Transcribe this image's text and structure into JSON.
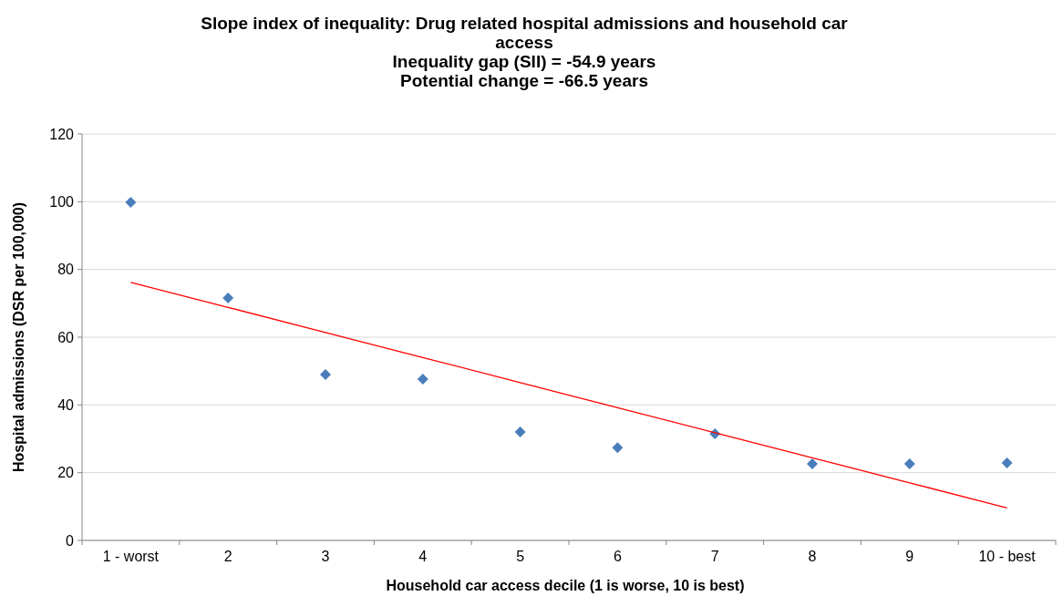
{
  "chart_data": {
    "type": "scatter",
    "title": "Slope index of inequality: Drug related hospital admissions and household car access",
    "subtitle": "Inequality gap (SII) = -54.9 years\nPotential change = -66.5 years",
    "xlabel": "Household car access decile (1 is worse, 10 is best)",
    "ylabel": "Hospital admissions (DSR per 100,000)",
    "categories": [
      "1 - worst",
      "2",
      "3",
      "4",
      "5",
      "6",
      "7",
      "8",
      "9",
      "10 - best"
    ],
    "series": [
      {
        "color": "#4a7ebb",
        "marker": "diamond",
        "values": [
          99.8,
          71.6,
          49.0,
          47.6,
          32.0,
          27.4,
          31.5,
          22.6,
          22.6,
          22.9
        ]
      },
      {
        "type": "line",
        "color": "#ff0000",
        "values": [
          76.2,
          68.8,
          61.4,
          54.0,
          46.6,
          39.2,
          31.8,
          24.4,
          17.0,
          9.6
        ]
      }
    ],
    "ylim": [
      0,
      120
    ],
    "yticks": [
      0,
      20,
      40,
      60,
      80,
      100,
      120
    ],
    "grid": "y"
  }
}
